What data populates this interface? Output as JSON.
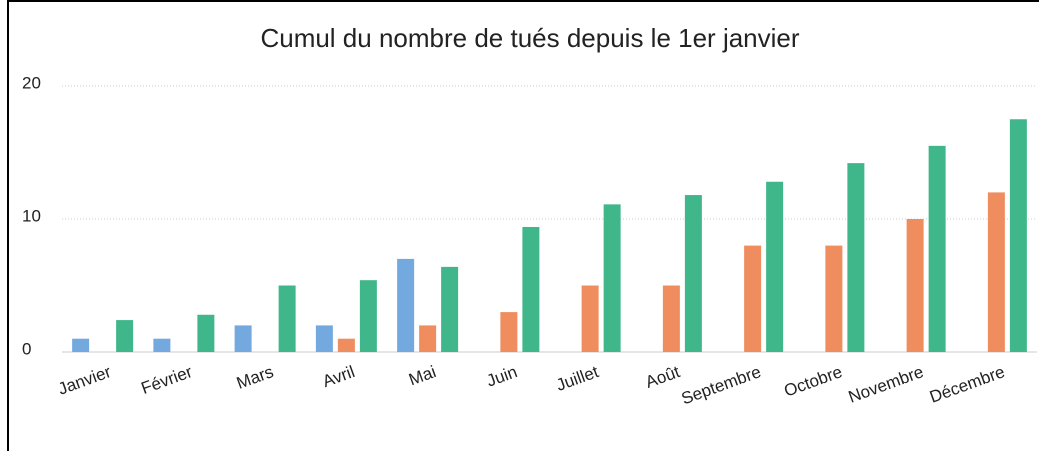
{
  "chart_data": {
    "type": "bar",
    "title": "Cumul du nombre de tués depuis le 1er janvier",
    "categories": [
      "Janvier",
      "Février",
      "Mars",
      "Avril",
      "Mai",
      "Juin",
      "Juillet",
      "Août",
      "Septembre",
      "Octobre",
      "Novembre",
      "Décembre"
    ],
    "series": [
      {
        "color": "#74a9e0",
        "values": [
          1,
          1,
          2,
          2,
          7,
          null,
          null,
          null,
          null,
          null,
          null,
          null
        ]
      },
      {
        "color": "#f08d5e",
        "values": [
          null,
          null,
          null,
          1,
          2,
          3,
          5,
          5,
          8,
          8,
          10,
          12
        ]
      },
      {
        "color": "#40b68b",
        "values": [
          2.4,
          2.8,
          5,
          5.4,
          6.4,
          9.4,
          11.1,
          11.8,
          12.8,
          14.2,
          15.5,
          17.5
        ]
      }
    ],
    "ylim": [
      0,
      21
    ],
    "yticks": [
      0,
      10,
      20
    ],
    "grid": true
  }
}
